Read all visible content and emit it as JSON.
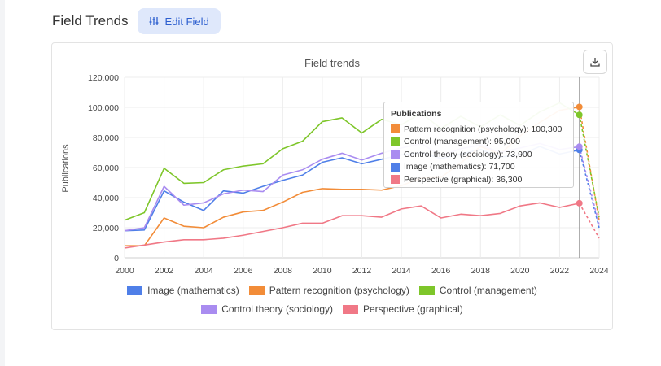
{
  "header": {
    "title": "Field Trends",
    "edit_button_label": "Edit Field",
    "edit_icon": "sliders-icon"
  },
  "card": {
    "download_icon": "download-icon"
  },
  "chart_data": {
    "type": "line",
    "title": "Field trends",
    "xlabel": "",
    "ylabel": "Publications",
    "xlim": [
      2000,
      2024
    ],
    "ylim": [
      0,
      120000
    ],
    "x_ticks": [
      "2000",
      "2002",
      "2004",
      "2006",
      "2008",
      "2010",
      "2012",
      "2014",
      "2016",
      "2018",
      "2020",
      "2022",
      "2024"
    ],
    "y_ticks": [
      "0",
      "20,000",
      "40,000",
      "60,000",
      "80,000",
      "100,000",
      "120,000"
    ],
    "grid": true,
    "legend_position": "bottom",
    "x": [
      2000,
      2001,
      2002,
      2003,
      2004,
      2005,
      2006,
      2007,
      2008,
      2009,
      2010,
      2011,
      2012,
      2013,
      2014,
      2015,
      2016,
      2017,
      2018,
      2019,
      2020,
      2021,
      2022,
      2023
    ],
    "series": [
      {
        "name": "Image (mathematics)",
        "color": "#4f7fe8",
        "values": [
          18000,
          18500,
          44500,
          37000,
          31500,
          44500,
          43000,
          47500,
          51500,
          55000,
          63500,
          66500,
          62500,
          65500,
          68500,
          70000,
          66000,
          69000,
          72000,
          67000,
          68500,
          74000,
          69000,
          71700
        ]
      },
      {
        "name": "Pattern recognition (psychology)",
        "color": "#f28c38",
        "values": [
          8000,
          8000,
          26500,
          21000,
          20000,
          27000,
          30500,
          31500,
          37000,
          43500,
          46000,
          45500,
          45500,
          45000,
          48000,
          53000,
          53500,
          63000,
          74000,
          69000,
          81000,
          90000,
          98000,
          100300
        ]
      },
      {
        "name": "Control (management)",
        "color": "#7ec62a",
        "values": [
          25000,
          30000,
          59500,
          49500,
          50000,
          58500,
          61000,
          62500,
          72500,
          77500,
          90500,
          93000,
          83000,
          92000,
          88500,
          96000,
          86000,
          94000,
          87000,
          95000,
          88000,
          97000,
          103000,
          95000
        ]
      },
      {
        "name": "Control theory (sociology)",
        "color": "#a98cf0",
        "values": [
          18000,
          20000,
          47500,
          35000,
          36500,
          42500,
          45000,
          44000,
          55000,
          58500,
          65500,
          69500,
          65000,
          69500,
          73000,
          76000,
          68000,
          72500,
          75000,
          70000,
          73000,
          76000,
          72000,
          73900
        ]
      },
      {
        "name": "Perspective (graphical)",
        "color": "#f07886",
        "values": [
          6500,
          8500,
          10500,
          12000,
          12000,
          13000,
          15000,
          17500,
          20000,
          23000,
          23000,
          28000,
          28000,
          27000,
          32500,
          34500,
          26500,
          29000,
          28000,
          29500,
          34500,
          36500,
          33500,
          36300
        ]
      }
    ],
    "projection": {
      "x": 2024,
      "values": [
        20000,
        25000,
        27000,
        22000,
        13000
      ]
    },
    "hover_x": 2023,
    "tooltip": {
      "title": "Publications",
      "rows": [
        {
          "label": "Pattern recognition (psychology): 100,300",
          "color": "#f28c38"
        },
        {
          "label": "Control (management): 95,000",
          "color": "#7ec62a"
        },
        {
          "label": "Control theory (sociology): 73,900",
          "color": "#a98cf0"
        },
        {
          "label": "Image (mathematics): 71,700",
          "color": "#4f7fe8"
        },
        {
          "label": "Perspective (graphical): 36,300",
          "color": "#f07886"
        }
      ]
    },
    "legend": [
      [
        {
          "label": "Image (mathematics)",
          "color": "#4f7fe8"
        },
        {
          "label": "Pattern recognition (psychology)",
          "color": "#f28c38"
        },
        {
          "label": "Control (management)",
          "color": "#7ec62a"
        }
      ],
      [
        {
          "label": "Control theory (sociology)",
          "color": "#a98cf0"
        },
        {
          "label": "Perspective (graphical)",
          "color": "#f07886"
        }
      ]
    ]
  }
}
